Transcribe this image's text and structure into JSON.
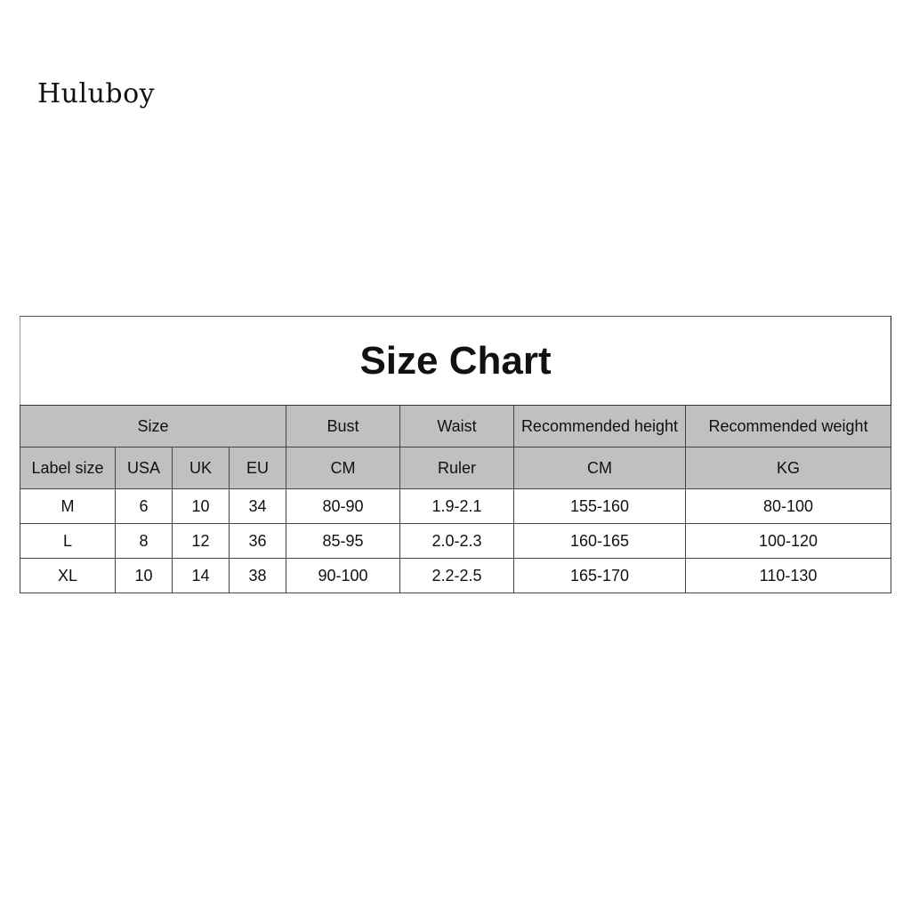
{
  "brand": "Huluboy",
  "table": {
    "title": "Size Chart",
    "header": [
      "Size",
      "Bust",
      "Waist",
      "Recommended height",
      "Recommended weight"
    ],
    "subheader": [
      "Label size",
      "USA",
      "UK",
      "EU",
      "CM",
      "Ruler",
      "CM",
      "KG"
    ],
    "rows": [
      [
        "M",
        "6",
        "10",
        "34",
        "80-90",
        "1.9-2.1",
        "155-160",
        "80-100"
      ],
      [
        "L",
        "8",
        "12",
        "36",
        "85-95",
        "2.0-2.3",
        "160-165",
        "100-120"
      ],
      [
        "XL",
        "10",
        "14",
        "38",
        "90-100",
        "2.2-2.5",
        "165-170",
        "110-130"
      ]
    ],
    "header_bg": "#c0c0c0"
  }
}
